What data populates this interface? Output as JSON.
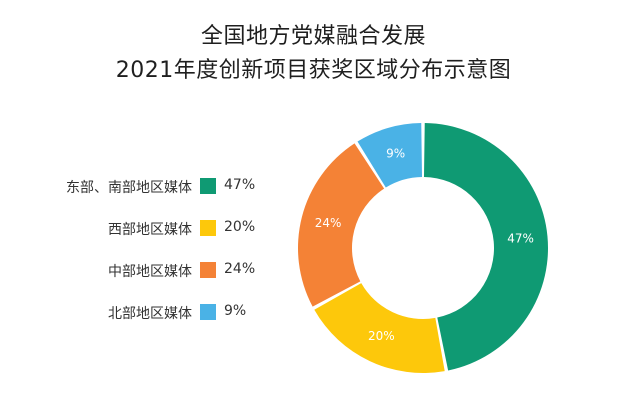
{
  "title": {
    "line1": "全国地方党媒融合发展",
    "line2": "2021年度创新项目获奖区域分布示意图"
  },
  "chart_data": {
    "type": "pie",
    "donut": true,
    "categories": [
      "东部、南部地区媒体",
      "西部地区媒体",
      "中部地区媒体",
      "北部地区媒体"
    ],
    "values": [
      47,
      20,
      24,
      9
    ],
    "labels": [
      "47%",
      "20%",
      "24%",
      "9%"
    ],
    "colors": [
      "#0f9a73",
      "#fdc80b",
      "#f48236",
      "#4ab2e6"
    ],
    "legend_position": "left"
  }
}
